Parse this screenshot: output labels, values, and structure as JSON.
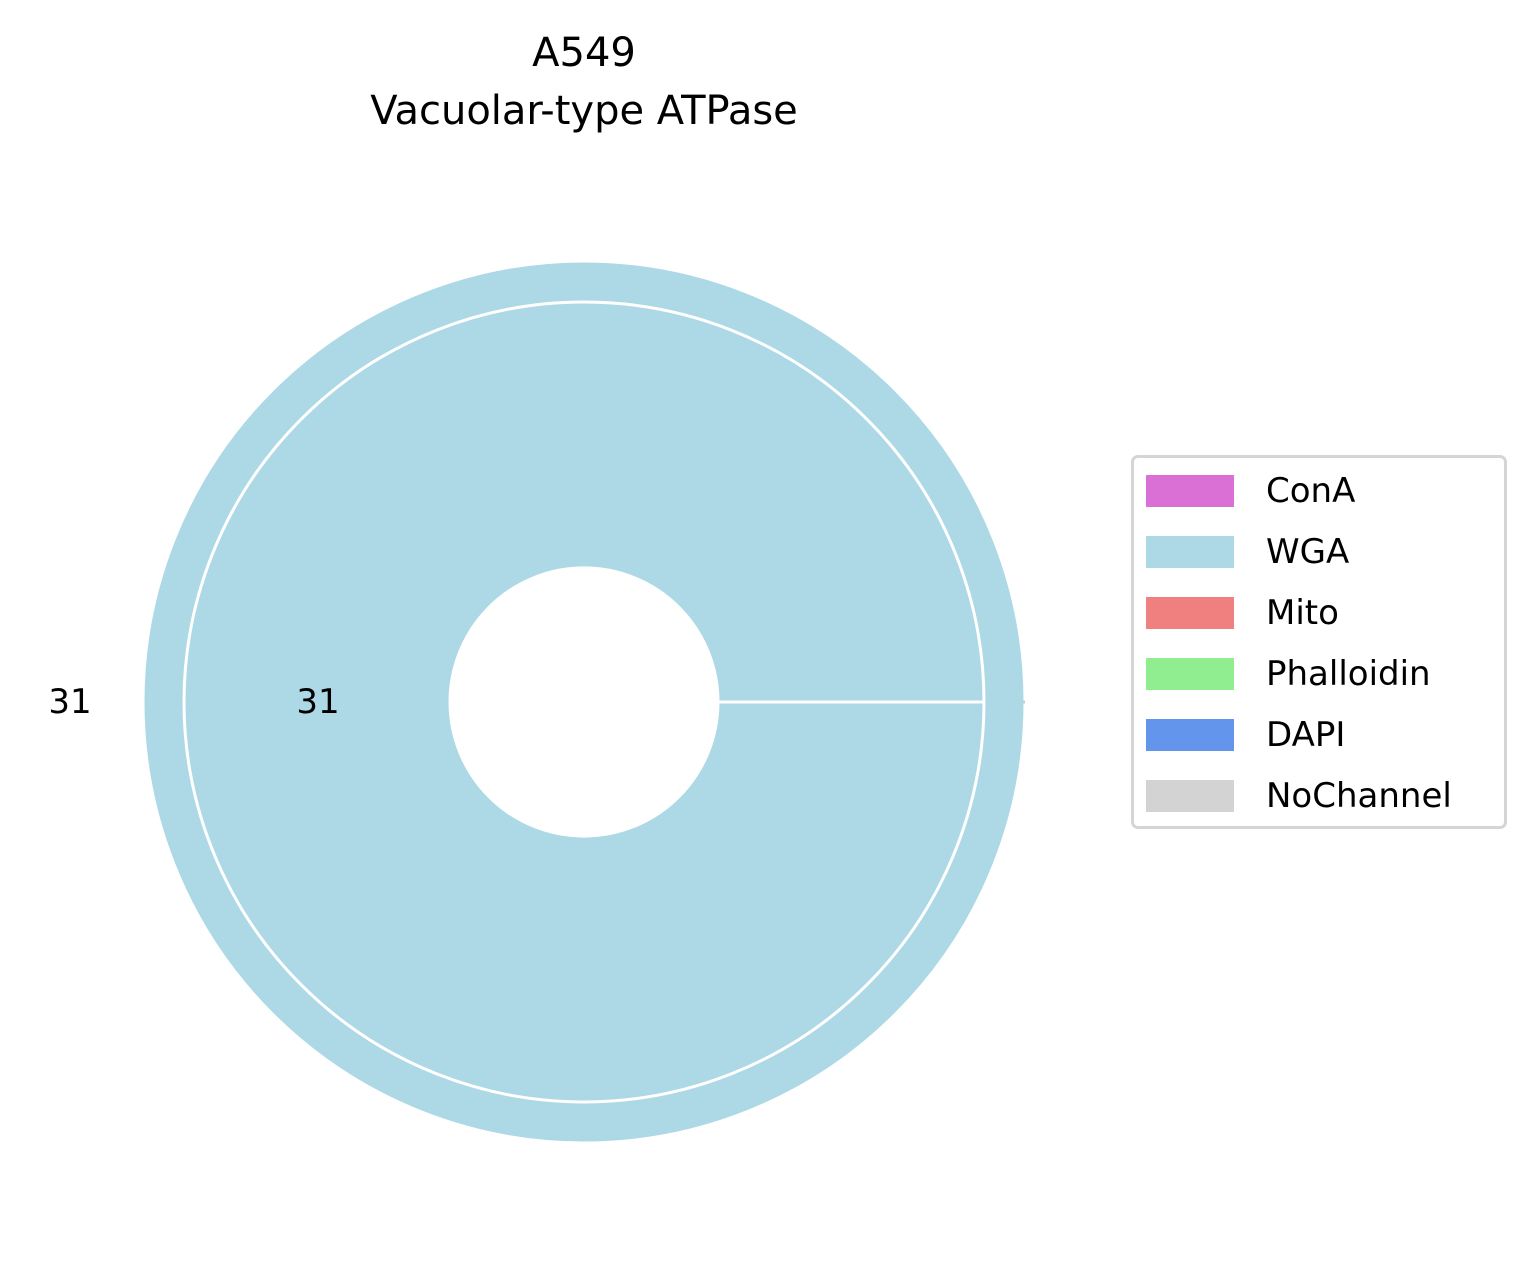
{
  "chart_data": {
    "type": "pie",
    "title_lines": [
      "A549",
      "Vacuolar-type ATPase"
    ],
    "rings": [
      {
        "name": "outer",
        "slices": [
          {
            "category": "WGA",
            "value": 31,
            "color": "#add8e6"
          }
        ],
        "label": "31"
      },
      {
        "name": "inner",
        "slices": [
          {
            "category": "WGA",
            "value": 31,
            "color": "#add8e6"
          }
        ],
        "label": "31"
      }
    ],
    "legend": {
      "placement": "right",
      "entries": [
        {
          "label": "ConA",
          "color": "#da70d6"
        },
        {
          "label": "WGA",
          "color": "#add8e6"
        },
        {
          "label": "Mito",
          "color": "#f08080"
        },
        {
          "label": "Phalloidin",
          "color": "#90ee90"
        },
        {
          "label": "DAPI",
          "color": "#6495ed"
        },
        {
          "label": "NoChannel",
          "color": "#d3d3d3"
        }
      ]
    }
  }
}
